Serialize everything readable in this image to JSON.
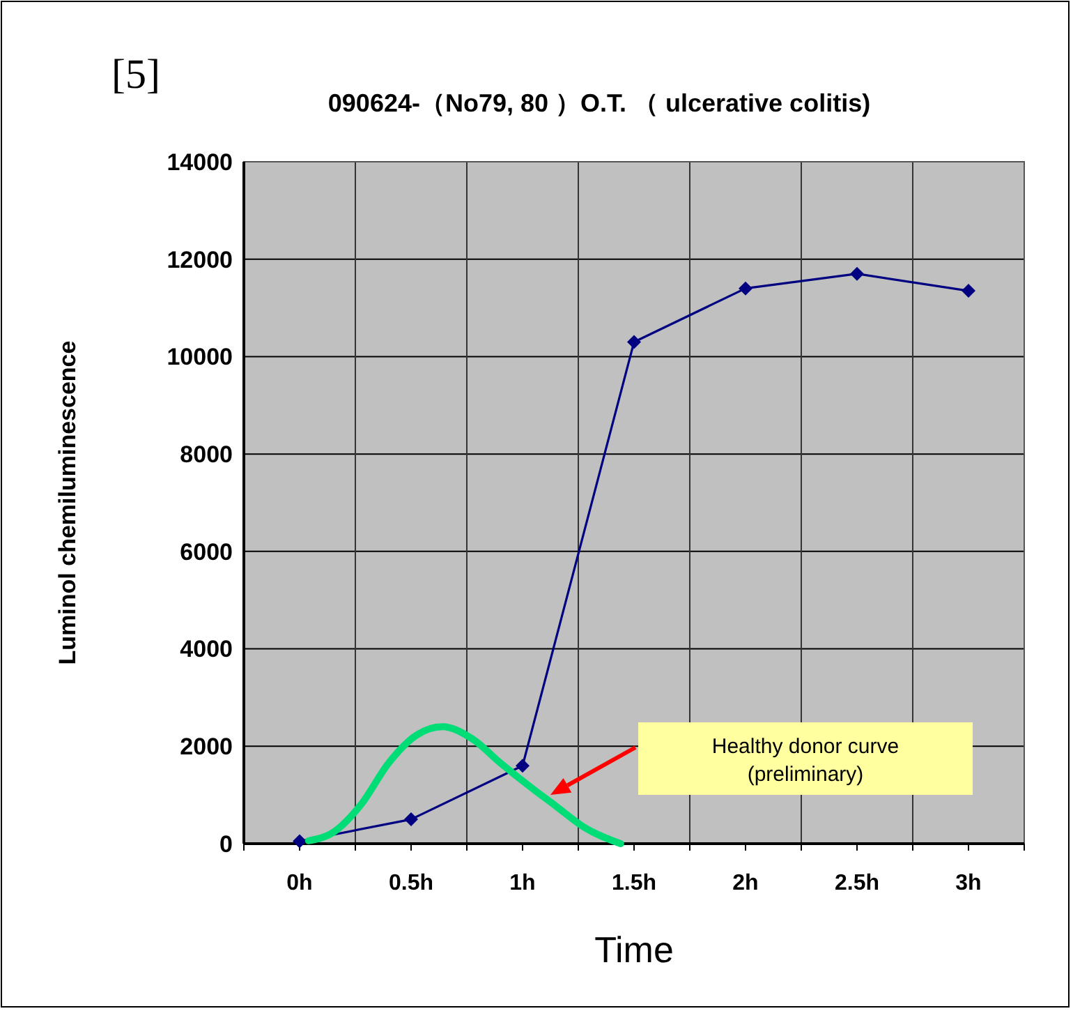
{
  "chart_data": {
    "type": "line",
    "title": "090624-（No79, 80 ）O.T. （ ulcerative colitis)",
    "xlabel": "Time",
    "ylabel": "Luminol chemiluminescence",
    "x": [
      0,
      0.5,
      1,
      1.5,
      2,
      2.5,
      3
    ],
    "series": [
      {
        "color": "#000080",
        "marker": "diamond",
        "values": [
          50,
          500,
          1600,
          10300,
          11400,
          11700,
          11350
        ]
      },
      {
        "color": "#00dd77",
        "marker": "none",
        "x": [
          0.04,
          0.15,
          0.275,
          0.4,
          0.525,
          0.64,
          0.775,
          0.9,
          1.025,
          1.15,
          1.275,
          1.44
        ],
        "values": [
          60,
          230,
          800,
          1660,
          2230,
          2400,
          2150,
          1660,
          1200,
          770,
          340,
          0
        ]
      }
    ],
    "xlim": [
      -0.25,
      3.25
    ],
    "xticks": [
      {
        "value": -0.25,
        "label": null
      },
      {
        "value": 0,
        "label": "0h"
      },
      {
        "value": 0.25,
        "label": null
      },
      {
        "value": 0.5,
        "label": "0.5h"
      },
      {
        "value": 0.75,
        "label": null
      },
      {
        "value": 1,
        "label": "1h"
      },
      {
        "value": 1.25,
        "label": null
      },
      {
        "value": 1.5,
        "label": "1.5h"
      },
      {
        "value": 1.75,
        "label": null
      },
      {
        "value": 2,
        "label": "2h"
      },
      {
        "value": 2.25,
        "label": null
      },
      {
        "value": 2.5,
        "label": "2.5h"
      },
      {
        "value": 2.75,
        "label": null
      },
      {
        "value": 3,
        "label": "3h"
      },
      {
        "value": 3.25,
        "label": null
      }
    ],
    "ylim": [
      0,
      14000
    ],
    "yticks": [
      0,
      2000,
      4000,
      6000,
      8000,
      10000,
      12000,
      14000
    ],
    "grid": true,
    "line_style": "solid",
    "annotations": [
      "[5]",
      "Healthy donor curve\n(preliminary)"
    ]
  }
}
